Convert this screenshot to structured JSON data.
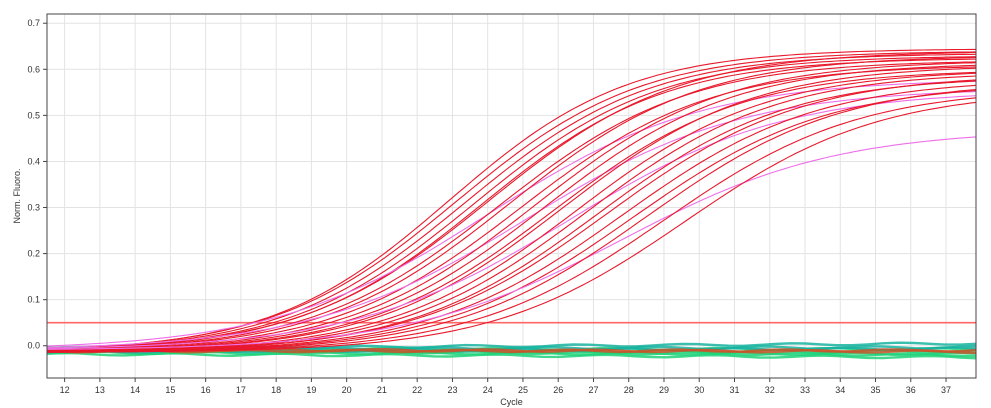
{
  "chart_data": {
    "type": "line",
    "title": "",
    "xlabel": "Cycle",
    "ylabel": "Norm. Fluoro.",
    "xlim": [
      11.5,
      37.85
    ],
    "ylim": [
      -0.07,
      0.72
    ],
    "x_ticks": [
      12,
      13,
      14,
      15,
      16,
      17,
      18,
      19,
      20,
      21,
      22,
      23,
      24,
      25,
      26,
      27,
      28,
      29,
      30,
      31,
      32,
      33,
      34,
      35,
      36,
      37
    ],
    "x_tick_labels": [
      "12",
      "13",
      "14",
      "15",
      "16",
      "17",
      "18",
      "19",
      "20",
      "21",
      "22",
      "23",
      "24",
      "25",
      "26",
      "27",
      "28",
      "29",
      "30",
      "31",
      "32",
      "33",
      "34",
      "35",
      "36",
      "37"
    ],
    "y_ticks": [
      0.0,
      0.1,
      0.2,
      0.3,
      0.4,
      0.5,
      0.6,
      0.7
    ],
    "y_tick_labels": [
      "0.0",
      "0.1",
      "0.2",
      "0.3",
      "0.4",
      "0.5",
      "0.6",
      "0.7"
    ],
    "grid": true,
    "legend": "none",
    "threshold": {
      "y": 0.05,
      "color": "#ff6666"
    },
    "colors": {
      "red": "#e8192c",
      "pink": "#ee6fe8",
      "threshold": "#ff6666",
      "green": "#1fd27a",
      "teal": "#17b3a0",
      "rust": "#c8552a",
      "frame": "#444444",
      "grid": "#e3e3e3"
    },
    "amplification_series": [
      {
        "color": "red",
        "bottom": -0.015,
        "top": 0.645,
        "midpoint": 22.9,
        "slope": 1.75
      },
      {
        "color": "red",
        "bottom": -0.015,
        "top": 0.64,
        "midpoint": 23.1,
        "slope": 1.8
      },
      {
        "color": "red",
        "bottom": -0.015,
        "top": 0.635,
        "midpoint": 23.35,
        "slope": 1.8
      },
      {
        "color": "red",
        "bottom": -0.015,
        "top": 0.63,
        "midpoint": 23.6,
        "slope": 1.8
      },
      {
        "color": "red",
        "bottom": -0.015,
        "top": 0.625,
        "midpoint": 23.8,
        "slope": 1.8
      },
      {
        "color": "red",
        "bottom": -0.015,
        "top": 0.64,
        "midpoint": 24.0,
        "slope": 1.85
      },
      {
        "color": "pink",
        "bottom": -0.01,
        "top": 0.58,
        "midpoint": 24.0,
        "slope": 2.1
      },
      {
        "color": "red",
        "bottom": -0.015,
        "top": 0.62,
        "midpoint": 24.3,
        "slope": 1.85
      },
      {
        "color": "red",
        "bottom": -0.015,
        "top": 0.63,
        "midpoint": 24.6,
        "slope": 1.85
      },
      {
        "color": "red",
        "bottom": -0.015,
        "top": 0.61,
        "midpoint": 24.9,
        "slope": 1.85
      },
      {
        "color": "pink",
        "bottom": -0.01,
        "top": 0.56,
        "midpoint": 25.1,
        "slope": 2.1
      },
      {
        "color": "red",
        "bottom": -0.015,
        "top": 0.62,
        "midpoint": 25.3,
        "slope": 1.85
      },
      {
        "color": "red",
        "bottom": -0.015,
        "top": 0.615,
        "midpoint": 25.6,
        "slope": 1.85
      },
      {
        "color": "red",
        "bottom": -0.015,
        "top": 0.6,
        "midpoint": 25.85,
        "slope": 1.85
      },
      {
        "color": "red",
        "bottom": -0.015,
        "top": 0.61,
        "midpoint": 26.1,
        "slope": 1.85
      },
      {
        "color": "pink",
        "bottom": -0.01,
        "top": 0.555,
        "midpoint": 26.3,
        "slope": 2.1
      },
      {
        "color": "red",
        "bottom": -0.015,
        "top": 0.6,
        "midpoint": 26.5,
        "slope": 1.85
      },
      {
        "color": "red",
        "bottom": -0.015,
        "top": 0.595,
        "midpoint": 26.8,
        "slope": 1.85
      },
      {
        "color": "red",
        "bottom": -0.015,
        "top": 0.585,
        "midpoint": 27.1,
        "slope": 1.85
      },
      {
        "color": "red",
        "bottom": -0.015,
        "top": 0.59,
        "midpoint": 27.4,
        "slope": 1.9
      },
      {
        "color": "red",
        "bottom": -0.015,
        "top": 0.58,
        "midpoint": 27.8,
        "slope": 1.9
      },
      {
        "color": "red",
        "bottom": -0.015,
        "top": 0.57,
        "midpoint": 28.1,
        "slope": 1.9
      },
      {
        "color": "pink",
        "bottom": -0.01,
        "top": 0.47,
        "midpoint": 27.8,
        "slope": 2.1
      },
      {
        "color": "red",
        "bottom": -0.015,
        "top": 0.575,
        "midpoint": 28.5,
        "slope": 1.9
      },
      {
        "color": "red",
        "bottom": -0.015,
        "top": 0.56,
        "midpoint": 29.0,
        "slope": 1.9
      },
      {
        "color": "red",
        "bottom": -0.015,
        "top": 0.555,
        "midpoint": 29.6,
        "slope": 1.9
      }
    ],
    "baseline_series": [
      {
        "color": "green",
        "y0": -0.005,
        "y1": -0.008
      },
      {
        "color": "green",
        "y0": -0.01,
        "y1": -0.02
      },
      {
        "color": "green",
        "y0": -0.012,
        "y1": -0.012
      },
      {
        "color": "green",
        "y0": -0.015,
        "y1": -0.018
      },
      {
        "color": "green",
        "y0": -0.018,
        "y1": -0.025
      },
      {
        "color": "teal",
        "y0": -0.006,
        "y1": 0.005
      },
      {
        "color": "teal",
        "y0": -0.008,
        "y1": -0.003
      },
      {
        "color": "teal",
        "y0": -0.013,
        "y1": -0.006
      },
      {
        "color": "rust",
        "y0": -0.008,
        "y1": -0.013
      },
      {
        "color": "rust",
        "y0": -0.012,
        "y1": -0.01
      }
    ]
  }
}
